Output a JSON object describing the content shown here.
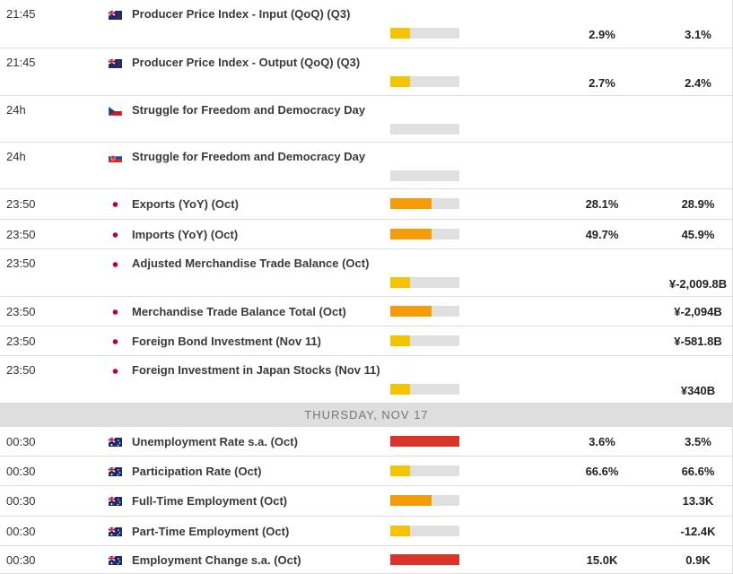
{
  "sections": [
    {
      "rows": [
        {
          "time": "21:45",
          "country": "nz",
          "event": "Producer Price Index - Input (QoQ) (Q3)",
          "impact": "low",
          "forecast": "2.9%",
          "previous": "3.1%"
        },
        {
          "time": "21:45",
          "country": "nz",
          "event": "Producer Price Index - Output (QoQ) (Q3)",
          "impact": "low",
          "forecast": "2.7%",
          "previous": "2.4%"
        },
        {
          "time": "24h",
          "country": "cz",
          "event": "Struggle for Freedom and Democracy Day",
          "impact": "none"
        },
        {
          "time": "24h",
          "country": "sk",
          "event": "Struggle for Freedom and Democracy Day",
          "impact": "none"
        },
        {
          "time": "23:50",
          "country": "jp",
          "event": "Exports (YoY) (Oct)",
          "impact": "medium",
          "forecast": "28.1%",
          "previous": "28.9%"
        },
        {
          "time": "23:50",
          "country": "jp",
          "event": "Imports (YoY) (Oct)",
          "impact": "medium",
          "forecast": "49.7%",
          "previous": "45.9%"
        },
        {
          "time": "23:50",
          "country": "jp",
          "event": "Adjusted Merchandise Trade Balance (Oct)",
          "impact": "low",
          "previous": "¥-2,009.8B"
        },
        {
          "time": "23:50",
          "country": "jp",
          "event": "Merchandise Trade Balance Total (Oct)",
          "impact": "medium",
          "previous": "¥-2,094B"
        },
        {
          "time": "23:50",
          "country": "jp",
          "event": "Foreign Bond Investment (Nov 11)",
          "impact": "low",
          "previous": "¥-581.8B"
        },
        {
          "time": "23:50",
          "country": "jp",
          "event": "Foreign Investment in Japan Stocks (Nov 11)",
          "impact": "low",
          "previous": "¥340B"
        }
      ]
    },
    {
      "title": "THURSDAY, NOV 17",
      "rows": [
        {
          "time": "00:30",
          "country": "au",
          "event": "Unemployment Rate s.a. (Oct)",
          "impact": "high",
          "forecast": "3.6%",
          "previous": "3.5%"
        },
        {
          "time": "00:30",
          "country": "au",
          "event": "Participation Rate (Oct)",
          "impact": "low",
          "forecast": "66.6%",
          "previous": "66.6%"
        },
        {
          "time": "00:30",
          "country": "au",
          "event": "Full-Time Employment (Oct)",
          "impact": "medium",
          "previous": "13.3K"
        },
        {
          "time": "00:30",
          "country": "au",
          "event": "Part-Time Employment (Oct)",
          "impact": "low",
          "previous": "-12.4K"
        },
        {
          "time": "00:30",
          "country": "au",
          "event": "Employment Change s.a. (Oct)",
          "impact": "high",
          "forecast": "15.0K",
          "previous": "0.9K"
        }
      ]
    }
  ]
}
